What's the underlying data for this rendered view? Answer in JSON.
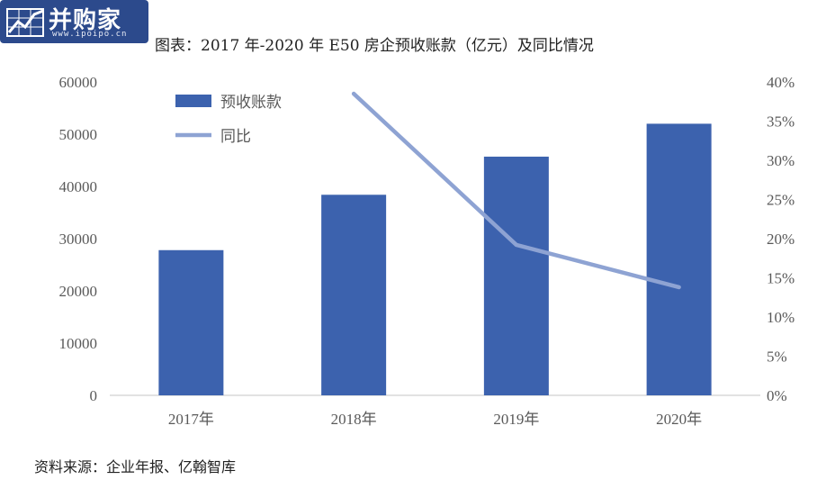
{
  "logo": {
    "name": "并购家",
    "url": "www.ipoipo.cn"
  },
  "title": "图表：2017 年-2020 年 E50 房企预收账款（亿元）及同比情况",
  "source": "资料来源：企业年报、亿翰智库",
  "colors": {
    "bar": "#3c62ae",
    "line": "#8ea3d3",
    "axis": "#d9d9d9",
    "text": "#595959"
  },
  "chart_data": {
    "type": "bar+line",
    "categories": [
      "2017年",
      "2018年",
      "2019年",
      "2020年"
    ],
    "series": [
      {
        "name": "预收账款",
        "type": "bar",
        "axis": "left",
        "values": [
          27800,
          38400,
          45700,
          52000
        ]
      },
      {
        "name": "同比",
        "type": "line",
        "axis": "right",
        "values": [
          null,
          0.385,
          0.192,
          0.138
        ]
      }
    ],
    "y_left": {
      "min": 0,
      "max": 60000,
      "ticks": [
        "0",
        "10000",
        "20000",
        "30000",
        "40000",
        "50000",
        "60000"
      ]
    },
    "y_right": {
      "min": 0,
      "max": 0.4,
      "ticks": [
        "0%",
        "5%",
        "10%",
        "15%",
        "20%",
        "25%",
        "30%",
        "35%",
        "40%"
      ]
    },
    "legend": {
      "position": "top-left",
      "items": [
        "预收账款",
        "同比"
      ]
    },
    "grid": false
  }
}
